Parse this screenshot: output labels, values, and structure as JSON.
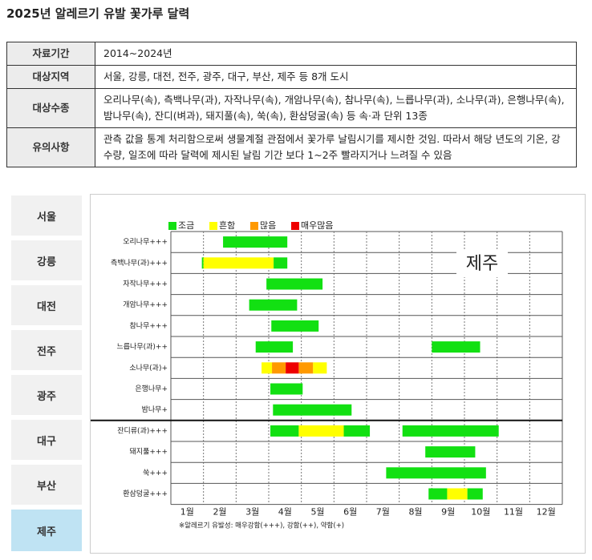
{
  "header": {
    "title": "2025년 알레르기 유발 꽃가루 달력"
  },
  "info_table": {
    "rows": [
      [
        "자료기간",
        "2014~2024년"
      ],
      [
        "대상지역",
        "서울, 강릉, 대전, 전주, 광주, 대구, 부산, 제주 등 8개 도시"
      ],
      [
        "대상수종",
        "오리나무(속), 측백나무(과), 자작나무(속), 개암나무(속), 참나무(속), 느릅나무(과), 소나무(과), 은행나무(속), 밤나무(속), 잔디(벼과), 돼지풀(속), 쑥(속), 환삼덩굴(속) 등 속·과 단위 13종"
      ],
      [
        "유의사항",
        "관측 값을 통계 처리함으로써 생물계절 관점에서 꽃가루 날림시기를 제시한 것임. 따라서 해당 년도의 기온, 강수량, 일조에 따라 달력에 제시된 날림 기간 보다 1~2주 빨라지거나 느려질 수 있음"
      ]
    ]
  },
  "regions": [
    "서울",
    "강릉",
    "대전",
    "전주",
    "광주",
    "대구",
    "부산",
    "제주"
  ],
  "calendar": {
    "region_label": "제주",
    "legend": [
      {
        "name": "조금",
        "color": "#12e012"
      },
      {
        "name": "흔함",
        "color": "#ffff00"
      },
      {
        "name": "많음",
        "color": "#ff9900"
      },
      {
        "name": "매우많음",
        "color": "#ee0000"
      }
    ],
    "months": [
      "1월",
      "2월",
      "3월",
      "4월",
      "5월",
      "6월",
      "7월",
      "8월",
      "9월",
      "10월",
      "11월",
      "12월"
    ],
    "groups": [
      [
        {
          "name": "오리나무+++",
          "periods": [
            {
              "start": 2.6,
              "end": 4.57,
              "level": "조금"
            }
          ]
        },
        {
          "name": "측백나무(과)+++",
          "periods": [
            {
              "start": 1.95,
              "end": 2.0,
              "level": "조금"
            },
            {
              "start": 2.0,
              "end": 4.15,
              "level": "흔함"
            },
            {
              "start": 4.15,
              "end": 4.57,
              "level": "조금"
            }
          ]
        },
        {
          "name": "자작나무+++",
          "periods": [
            {
              "start": 3.93,
              "end": 5.65,
              "level": "조금"
            }
          ]
        },
        {
          "name": "개암나무+++",
          "periods": [
            {
              "start": 3.4,
              "end": 4.87,
              "level": "조금"
            }
          ]
        },
        {
          "name": "참나무+++",
          "periods": [
            {
              "start": 4.08,
              "end": 5.53,
              "level": "조금"
            }
          ]
        },
        {
          "name": "느릅나무(과)++",
          "periods": [
            {
              "start": 3.6,
              "end": 4.74,
              "level": "조금"
            },
            {
              "start": 9.0,
              "end": 10.48,
              "level": "조금"
            }
          ]
        },
        {
          "name": "소나무(과)+",
          "periods": [
            {
              "start": 3.78,
              "end": 4.1,
              "level": "흔함"
            },
            {
              "start": 4.1,
              "end": 4.52,
              "level": "많음"
            },
            {
              "start": 4.52,
              "end": 4.92,
              "level": "매우많음"
            },
            {
              "start": 4.92,
              "end": 5.36,
              "level": "많음"
            },
            {
              "start": 5.36,
              "end": 5.78,
              "level": "흔함"
            }
          ]
        },
        {
          "name": "은행나무+",
          "periods": [
            {
              "start": 4.05,
              "end": 5.04,
              "level": "조금"
            }
          ]
        },
        {
          "name": "밤나무+",
          "periods": [
            {
              "start": 4.13,
              "end": 6.54,
              "level": "조금"
            }
          ]
        }
      ],
      [
        {
          "name": "잔디류(과)+++",
          "periods": [
            {
              "start": 4.05,
              "end": 4.92,
              "level": "조금"
            },
            {
              "start": 4.92,
              "end": 6.3,
              "level": "흔함"
            },
            {
              "start": 6.3,
              "end": 7.1,
              "level": "조금"
            },
            {
              "start": 8.1,
              "end": 11.05,
              "level": "조금"
            }
          ]
        },
        {
          "name": "돼지풀+++",
          "periods": [
            {
              "start": 8.8,
              "end": 10.33,
              "level": "조금"
            }
          ]
        },
        {
          "name": "쑥+++",
          "periods": [
            {
              "start": 7.6,
              "end": 10.66,
              "level": "조금"
            }
          ]
        },
        {
          "name": "환삼덩굴+++",
          "periods": [
            {
              "start": 8.9,
              "end": 9.47,
              "level": "조금"
            },
            {
              "start": 9.47,
              "end": 10.09,
              "level": "흔함"
            },
            {
              "start": 10.09,
              "end": 10.56,
              "level": "조금"
            }
          ]
        }
      ]
    ],
    "note": "※알레르기 유발성: 매우강함(+++), 강함(++), 약함(+)"
  }
}
